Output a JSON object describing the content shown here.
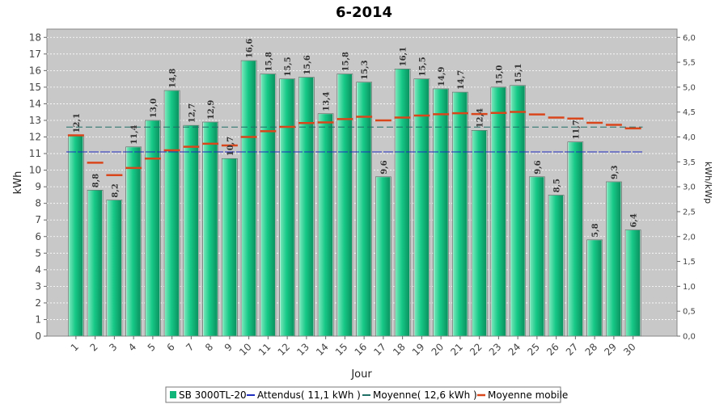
{
  "chart_data": {
    "type": "bar",
    "title": "6-2014",
    "xlabel": "Jour",
    "ylabel": "kWh",
    "ylabel_right": "kWh/kWp",
    "ylim": [
      0,
      18.5
    ],
    "ylim_right": [
      0,
      6.1667
    ],
    "grid": true,
    "legend_position": "bottom",
    "categories": [
      "1",
      "2",
      "3",
      "4",
      "5",
      "6",
      "7",
      "8",
      "9",
      "10",
      "11",
      "12",
      "13",
      "14",
      "15",
      "16",
      "17",
      "18",
      "19",
      "20",
      "21",
      "22",
      "23",
      "24",
      "25",
      "26",
      "27",
      "28",
      "29",
      "30"
    ],
    "yticks": [
      "0",
      "1",
      "2",
      "3",
      "4",
      "5",
      "6",
      "7",
      "8",
      "9",
      "10",
      "11",
      "12",
      "13",
      "14",
      "15",
      "16",
      "17",
      "18"
    ],
    "yticks_right": [
      "0,0",
      "0,5",
      "1,0",
      "1,5",
      "2,0",
      "2,5",
      "3,0",
      "3,5",
      "4,0",
      "4,5",
      "5,0",
      "5,5",
      "6,0"
    ],
    "series": [
      {
        "name": "SB 3000TL-20",
        "kind": "bar",
        "color": "#11b67a",
        "values": [
          12.1,
          8.8,
          8.2,
          11.4,
          13.0,
          14.8,
          12.7,
          12.9,
          10.7,
          16.6,
          15.8,
          15.5,
          15.6,
          13.4,
          15.8,
          15.3,
          9.6,
          16.1,
          15.5,
          14.9,
          14.7,
          12.4,
          15.0,
          15.1,
          9.6,
          8.5,
          11.7,
          5.8,
          9.3,
          6.4
        ],
        "labels": [
          "12,1",
          "8,8",
          "8,2",
          "11,4",
          "13,0",
          "14,8",
          "12,7",
          "12,9",
          "10,7",
          "16,6",
          "15,8",
          "15,5",
          "15,6",
          "13,4",
          "15,8",
          "15,3",
          "9,6",
          "16,1",
          "15,5",
          "14,9",
          "14,7",
          "12,4",
          "15,0",
          "15,1",
          "9,6",
          "8,5",
          "11,7",
          "5,8",
          "9,3",
          "6,4"
        ]
      },
      {
        "name": "Attendus( 11,1 kWh )",
        "kind": "hline",
        "color": "#1f2dbf",
        "value": 11.1
      },
      {
        "name": "Moyenne( 12,6 kWh )",
        "kind": "hline",
        "color": "#1f6f66",
        "value": 12.6
      },
      {
        "name": "Moyenne mobile",
        "kind": "step",
        "color": "#d9461c",
        "values": [
          12.1,
          10.45,
          9.7,
          10.13,
          10.7,
          11.2,
          11.41,
          11.59,
          11.49,
          12.0,
          12.35,
          12.61,
          12.84,
          12.88,
          13.08,
          13.22,
          13.0,
          13.17,
          13.29,
          13.37,
          13.43,
          13.38,
          13.45,
          13.51,
          13.36,
          13.17,
          13.11,
          12.85,
          12.73,
          12.52
        ]
      }
    ]
  }
}
